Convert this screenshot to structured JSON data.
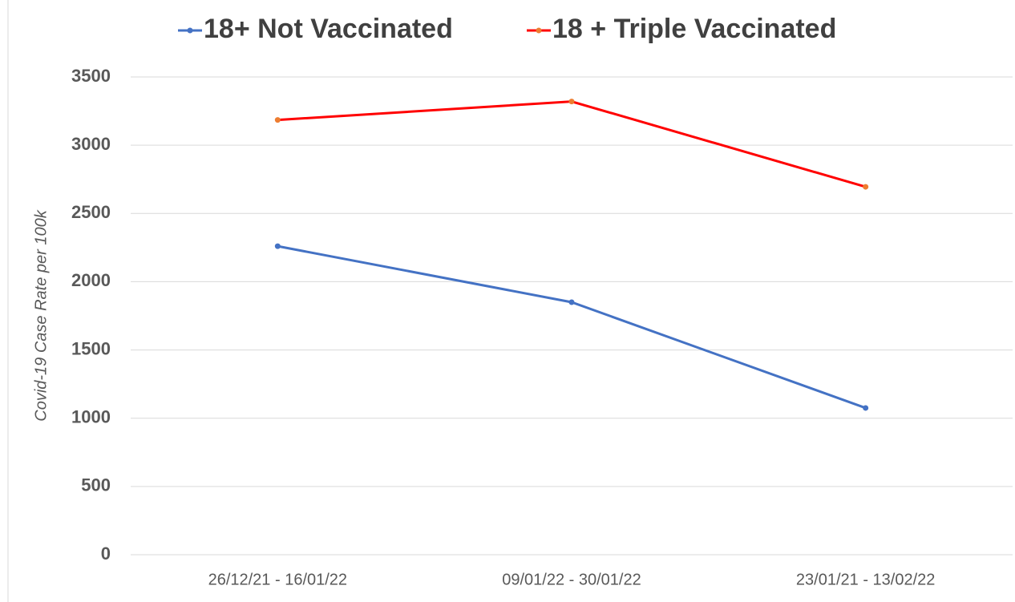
{
  "chart_data": {
    "type": "line",
    "y_label": "Covid-19 Case Rate per 100k",
    "categories": [
      "26/12/21 - 16/01/22",
      "09/01/22 - 30/01/22",
      "23/01/21 - 13/02/22"
    ],
    "series": [
      {
        "name": "18+ Not Vaccinated",
        "color": "#4472c4",
        "marker_color": "#4472c4",
        "values": [
          2260,
          1850,
          1075
        ]
      },
      {
        "name": "18 + Triple Vaccinated",
        "color": "#ff0000",
        "marker_color": "#ed7d31",
        "values": [
          3185,
          3320,
          2695
        ]
      }
    ],
    "ylim": [
      0,
      3500
    ],
    "yticks": [
      0,
      500,
      1000,
      1500,
      2000,
      2500,
      3000,
      3500
    ],
    "grid": true,
    "legend": "top"
  }
}
